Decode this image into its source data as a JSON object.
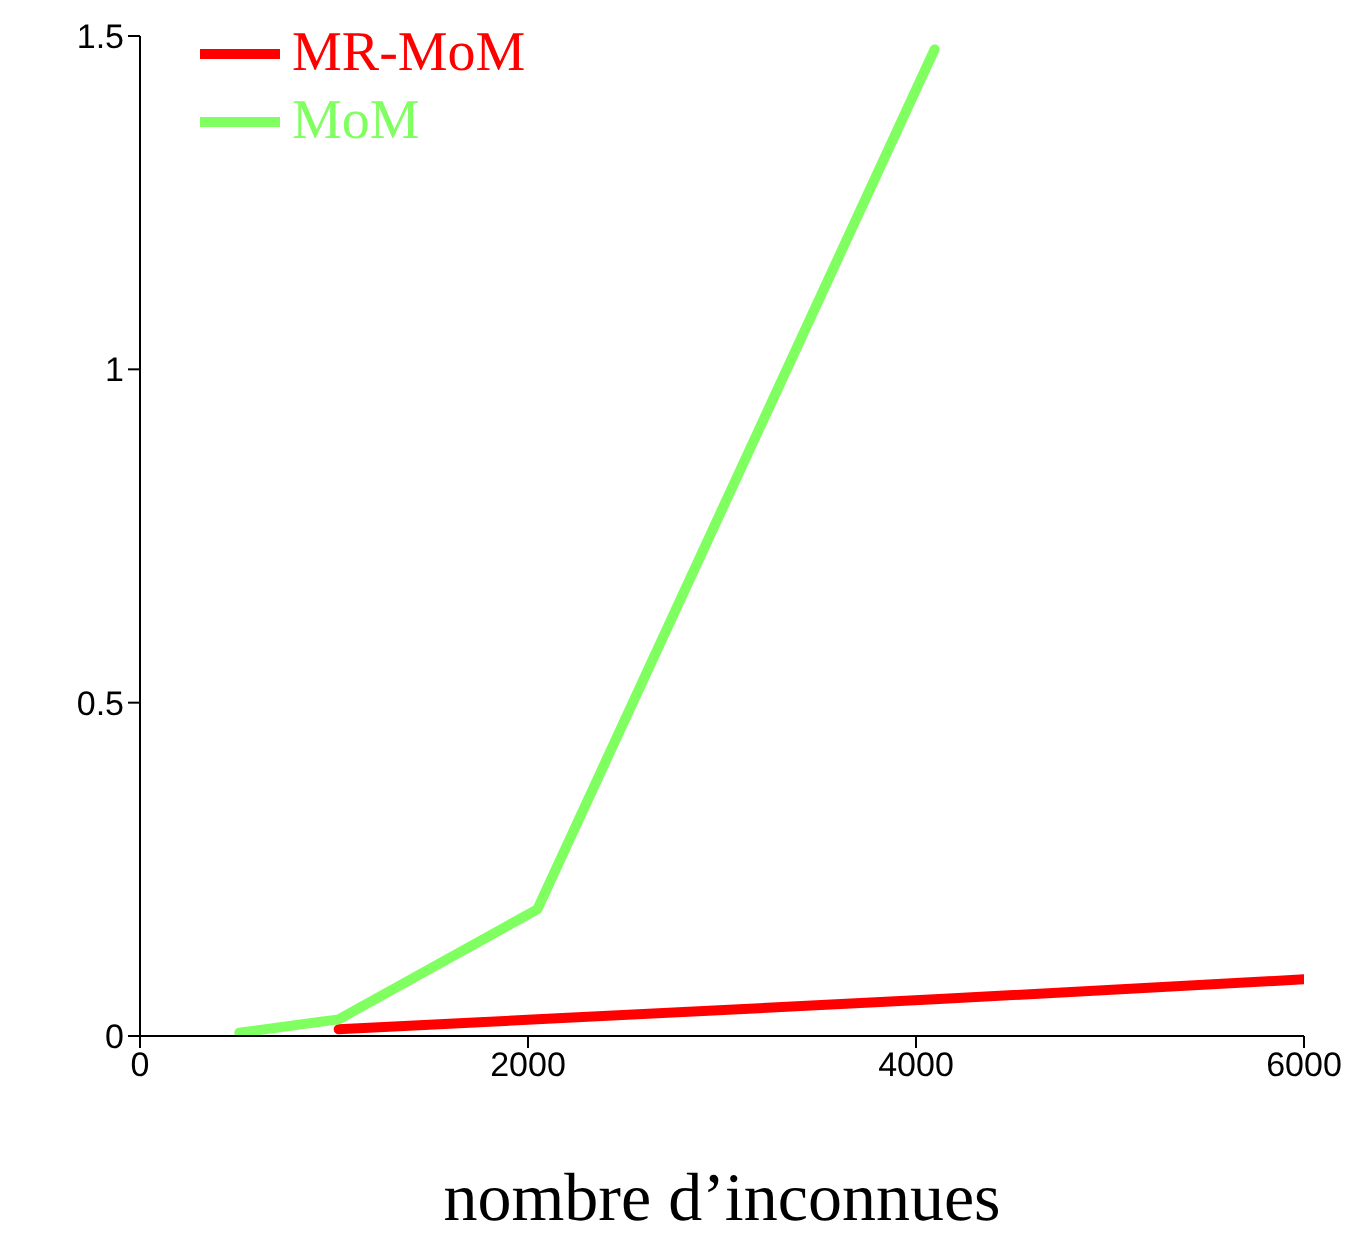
{
  "chart_data": {
    "type": "line",
    "xlabel": "nombre d’inconnues",
    "xlim": [
      0,
      6000
    ],
    "xticks": [
      0,
      2000,
      4000,
      6000
    ],
    "ylim": [
      0,
      1.5
    ],
    "yticks": [
      0,
      0.5,
      1,
      1.5
    ],
    "grid": false,
    "legend": "top left",
    "marker": "none",
    "line_style": "solid",
    "series": [
      {
        "name": "MR-MoM",
        "color": "#ff0000",
        "x": [
          1024,
          2048,
          4096,
          6000
        ],
        "values": [
          0.01,
          0.025,
          0.055,
          0.085
        ]
      },
      {
        "name": "MoM",
        "color": "#80ff60",
        "x": [
          512,
          1024,
          2048,
          4096
        ],
        "values": [
          0.005,
          0.025,
          0.19,
          1.48
        ]
      }
    ]
  }
}
